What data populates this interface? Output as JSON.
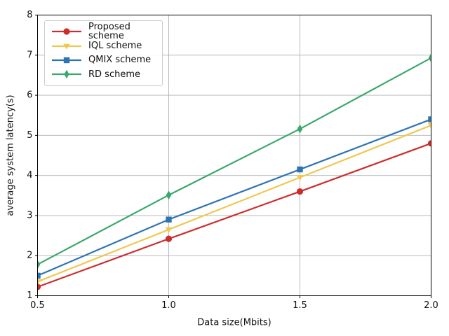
{
  "chart_data": {
    "type": "line",
    "title": "",
    "xlabel": "Data size(Mbits)",
    "ylabel": "average system latency(s)",
    "xlim": [
      0.5,
      2.0
    ],
    "ylim": [
      1,
      8
    ],
    "grid": true,
    "grid_color": "#b0b0b0",
    "legend_position": "upper left",
    "x": [
      0.5,
      1.0,
      1.5,
      2.0
    ],
    "xticks": {
      "values": [
        0.5,
        1.0,
        1.5,
        2.0
      ],
      "labels": [
        "0.5",
        "1.0",
        "1.5",
        "2.0"
      ]
    },
    "yticks": {
      "values": [
        1,
        2,
        3,
        4,
        5,
        6,
        7,
        8
      ],
      "labels": [
        "1",
        "2",
        "3",
        "4",
        "5",
        "6",
        "7",
        "8"
      ]
    },
    "series": [
      {
        "name": "Proposed scheme",
        "color": "#cd2c2c",
        "marker": "circle",
        "values": [
          1.22,
          2.42,
          3.6,
          4.8
        ]
      },
      {
        "name": "IQL scheme",
        "color": "#f0c850",
        "marker": "triangle-down",
        "values": [
          1.35,
          2.65,
          3.95,
          5.25
        ]
      },
      {
        "name": "QMIX scheme",
        "color": "#2d74b5",
        "marker": "square",
        "values": [
          1.5,
          2.9,
          4.15,
          5.4
        ]
      },
      {
        "name": "RD scheme",
        "color": "#3aa76d",
        "marker": "thin-diamond",
        "values": [
          1.78,
          3.51,
          5.16,
          6.93
        ]
      }
    ]
  }
}
